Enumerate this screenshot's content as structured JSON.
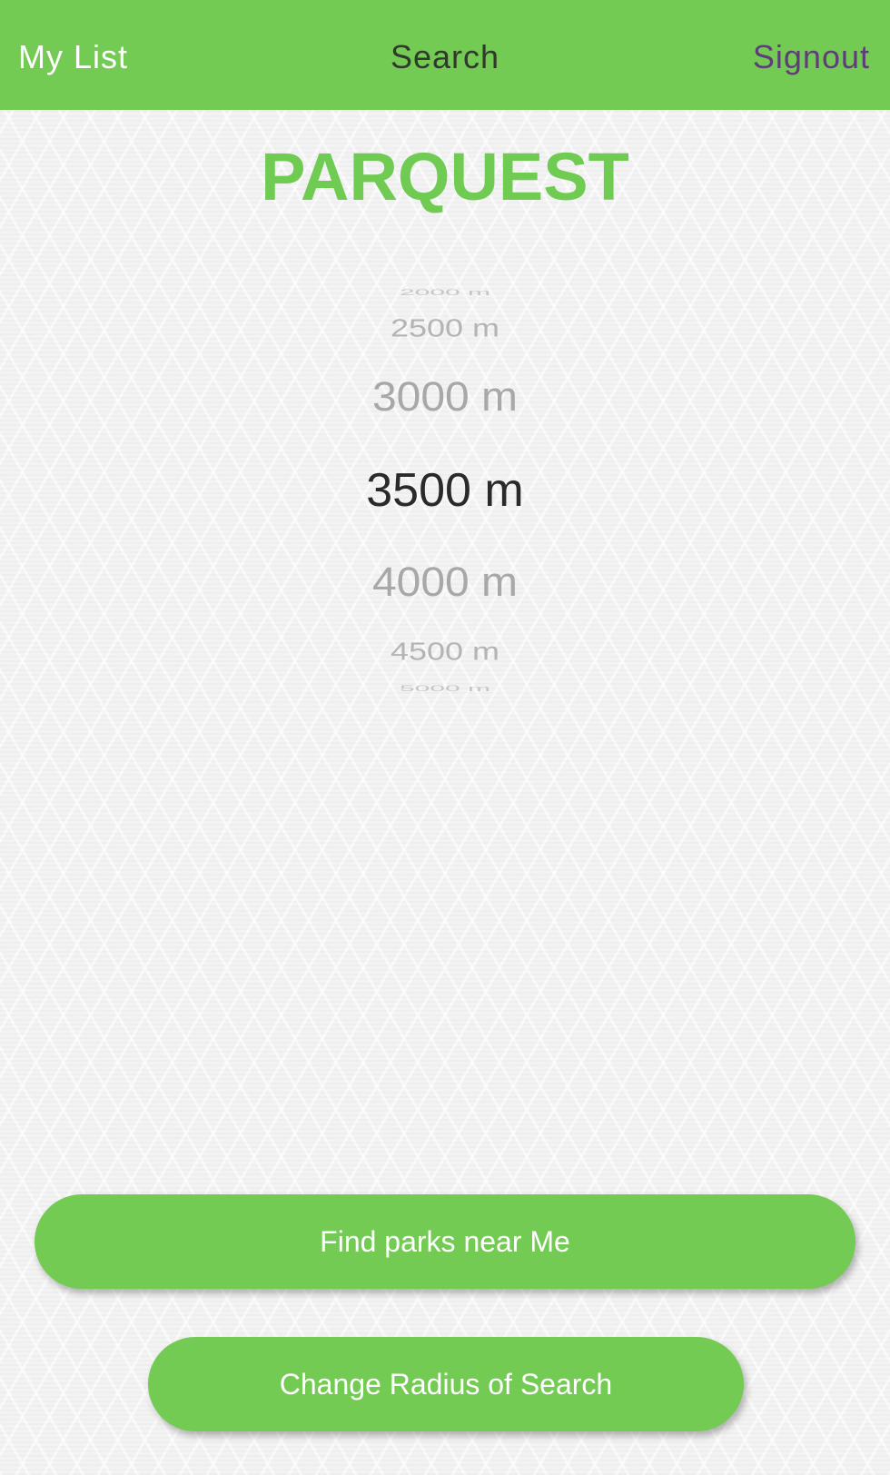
{
  "navbar": {
    "left_label": "My List",
    "center_label": "Search",
    "right_label": "Signout",
    "background_color": "#74cb54"
  },
  "app": {
    "title": "PARQUEST",
    "title_color": "#6fcb52"
  },
  "radius_picker": {
    "options": [
      "2000 m",
      "2500 m",
      "3000 m",
      "3500 m",
      "4000 m",
      "4500 m",
      "5000 m"
    ],
    "selected": "3500 m"
  },
  "buttons": {
    "find_parks": "Find parks near Me",
    "change_radius": "Change Radius of Search",
    "color": "#74cb54"
  }
}
